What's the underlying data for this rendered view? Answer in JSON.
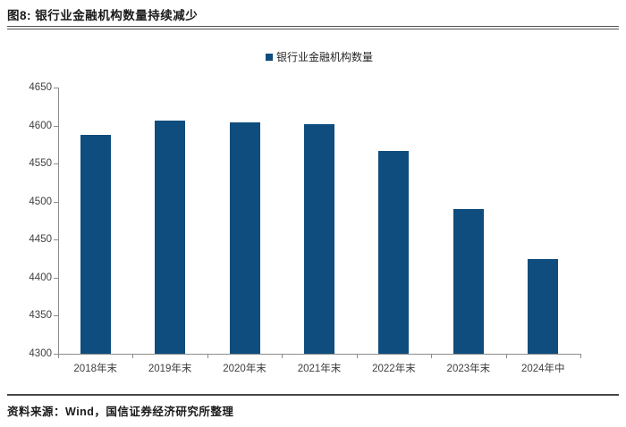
{
  "figure": {
    "title": "图8: 银行业金融机构数量持续减少",
    "source_note": "资料来源：Wind，国信证券经济研究所整理"
  },
  "legend": {
    "label": "银行业金融机构数量",
    "swatch_color": "#0e4d7e"
  },
  "colors": {
    "bar": "#0e4d7e",
    "axis": "#8c8c8c",
    "tick_label": "#3f3f3f",
    "divider": "#555555"
  },
  "chart_data": {
    "type": "bar",
    "title": "",
    "categories": [
      "2018年末",
      "2019年末",
      "2020年末",
      "2021年末",
      "2022年末",
      "2023年末",
      "2024年中"
    ],
    "series": [
      {
        "name": "银行业金融机构数量",
        "values": [
          4588,
          4607,
          4604,
          4602,
          4567,
          4490,
          4425
        ]
      }
    ],
    "xlabel": "",
    "ylabel": "",
    "ylim": [
      4300,
      4650
    ],
    "ytick_step": 50,
    "grid": false,
    "legend_position": "top-center",
    "bar_color": "#0e4d7e"
  }
}
